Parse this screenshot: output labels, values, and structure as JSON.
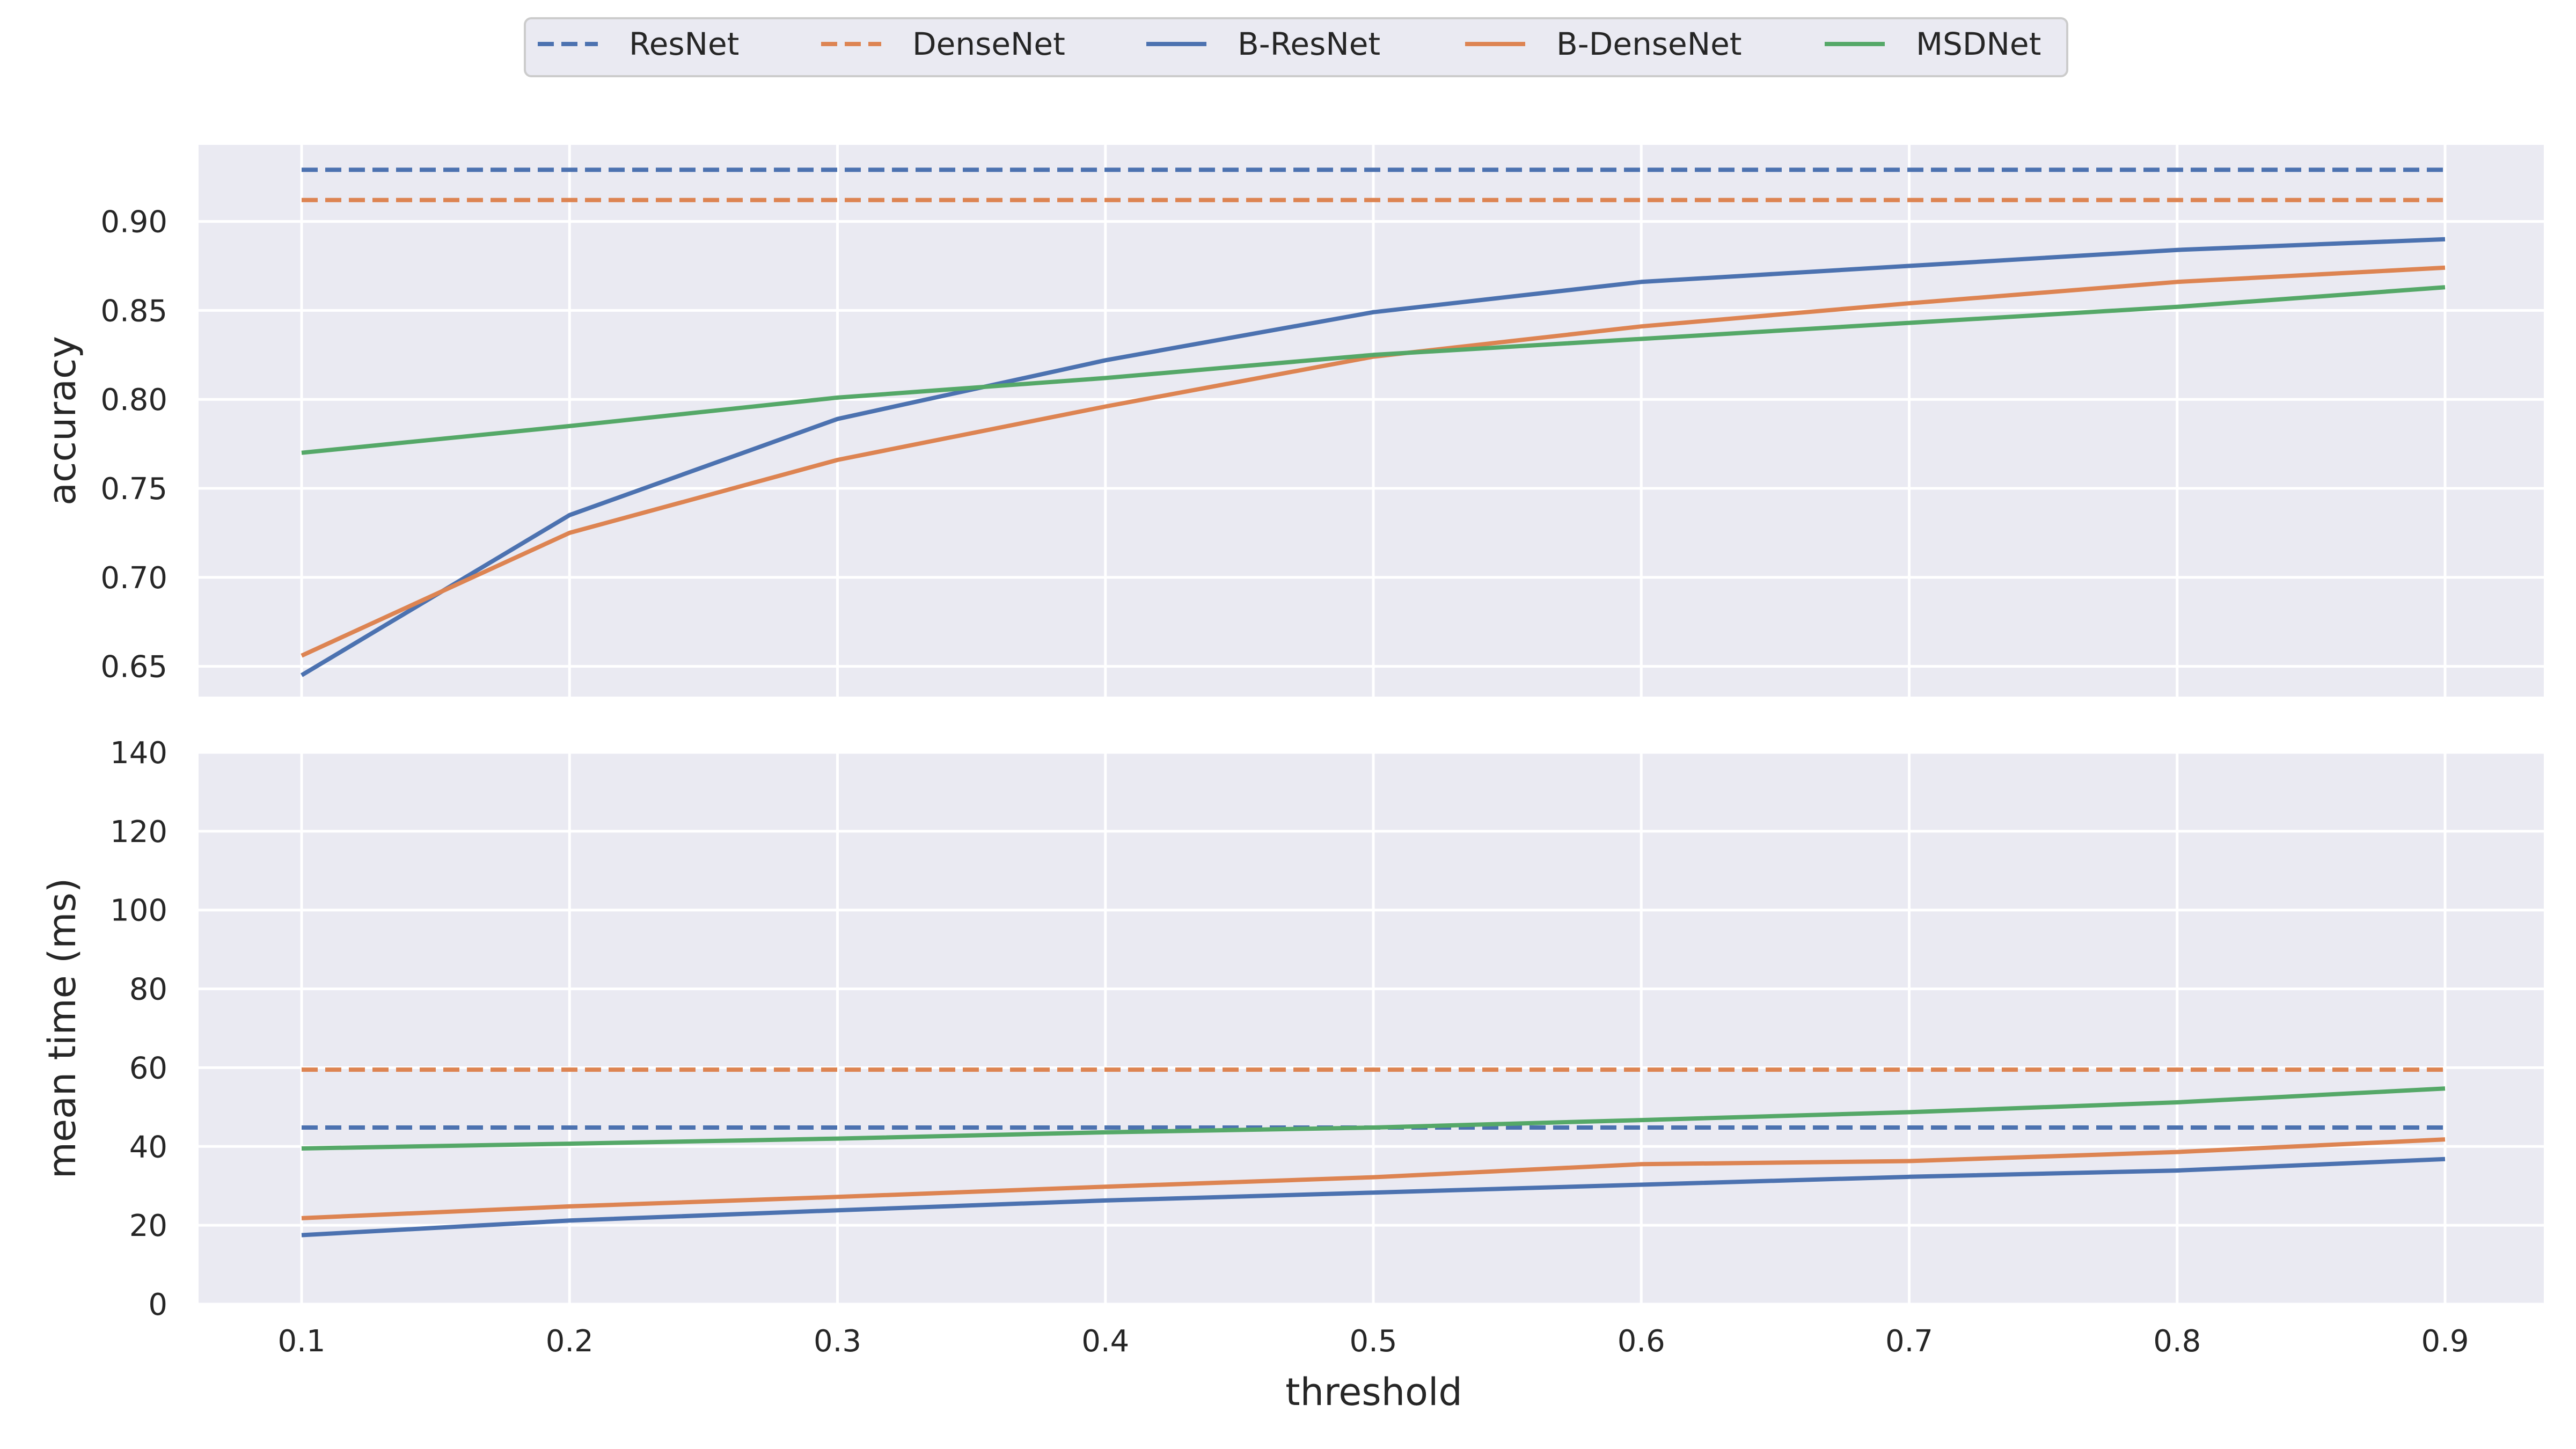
{
  "chart_data": [
    {
      "type": "line",
      "panel": "top",
      "ylabel": "accuracy",
      "xlabel": "",
      "ylim": [
        0.633,
        0.943
      ],
      "yticks": [
        "0.65",
        "0.70",
        "0.75",
        "0.80",
        "0.85",
        "0.90"
      ],
      "grid": true,
      "x": [
        0.1,
        0.2,
        0.3,
        0.4,
        0.5,
        0.6,
        0.7,
        0.8,
        0.9
      ],
      "series": [
        {
          "name": "ResNet",
          "style": "dashed",
          "color": "#4c72b0",
          "values": [
            0.929,
            0.929,
            0.929,
            0.929,
            0.929,
            0.929,
            0.929,
            0.929,
            0.929
          ]
        },
        {
          "name": "DenseNet",
          "style": "dashed",
          "color": "#dd8452",
          "values": [
            0.912,
            0.912,
            0.912,
            0.912,
            0.912,
            0.912,
            0.912,
            0.912,
            0.912
          ]
        },
        {
          "name": "B-ResNet",
          "style": "solid",
          "color": "#4c72b0",
          "values": [
            0.645,
            0.735,
            0.789,
            0.822,
            0.849,
            0.866,
            0.875,
            0.884,
            0.89
          ]
        },
        {
          "name": "B-DenseNet",
          "style": "solid",
          "color": "#dd8452",
          "values": [
            0.656,
            0.725,
            0.766,
            0.796,
            0.824,
            0.841,
            0.854,
            0.866,
            0.874
          ]
        },
        {
          "name": "MSDNet",
          "style": "solid",
          "color": "#55a868",
          "values": [
            0.77,
            0.785,
            0.801,
            0.812,
            0.825,
            0.834,
            0.843,
            0.852,
            0.863
          ]
        }
      ]
    },
    {
      "type": "line",
      "panel": "bottom",
      "ylabel": "mean time (ms)",
      "xlabel": "threshold",
      "ylim": [
        0,
        140
      ],
      "yticks": [
        "0",
        "20",
        "40",
        "60",
        "80",
        "100",
        "120",
        "140"
      ],
      "xticks": [
        "0.1",
        "0.2",
        "0.3",
        "0.4",
        "0.5",
        "0.6",
        "0.7",
        "0.8",
        "0.9"
      ],
      "grid": true,
      "x": [
        0.1,
        0.2,
        0.3,
        0.4,
        0.5,
        0.6,
        0.7,
        0.8,
        0.9
      ],
      "series": [
        {
          "name": "ResNet",
          "style": "dashed",
          "color": "#4c72b0",
          "values": [
            44.8,
            44.8,
            44.8,
            44.8,
            44.8,
            44.8,
            44.8,
            44.8,
            44.8
          ]
        },
        {
          "name": "DenseNet",
          "style": "dashed",
          "color": "#dd8452",
          "values": [
            59.5,
            59.5,
            59.5,
            59.5,
            59.5,
            59.5,
            59.5,
            59.5,
            59.5
          ]
        },
        {
          "name": "B-ResNet",
          "style": "solid",
          "color": "#4c72b0",
          "values": [
            17.5,
            21.2,
            23.8,
            26.3,
            28.3,
            30.3,
            32.3,
            33.9,
            36.8
          ]
        },
        {
          "name": "B-DenseNet",
          "style": "solid",
          "color": "#dd8452",
          "values": [
            21.8,
            24.8,
            27.2,
            29.8,
            32.2,
            35.5,
            36.3,
            38.6,
            41.8
          ]
        },
        {
          "name": "MSDNet",
          "style": "solid",
          "color": "#55a868",
          "values": [
            39.5,
            40.7,
            42.0,
            43.6,
            44.8,
            46.7,
            48.7,
            51.2,
            54.7
          ]
        }
      ]
    }
  ],
  "legend": {
    "placement": "top-center",
    "entries": [
      {
        "name": "ResNet",
        "style": "dashed",
        "color": "#4c72b0"
      },
      {
        "name": "DenseNet",
        "style": "dashed",
        "color": "#dd8452"
      },
      {
        "name": "B-ResNet",
        "style": "solid",
        "color": "#4c72b0"
      },
      {
        "name": "B-DenseNet",
        "style": "solid",
        "color": "#dd8452"
      },
      {
        "name": "MSDNet",
        "style": "solid",
        "color": "#55a868"
      }
    ]
  },
  "colors": {
    "panel_bg": "#eaeaf2",
    "grid": "#ffffff",
    "text": "#262626"
  }
}
